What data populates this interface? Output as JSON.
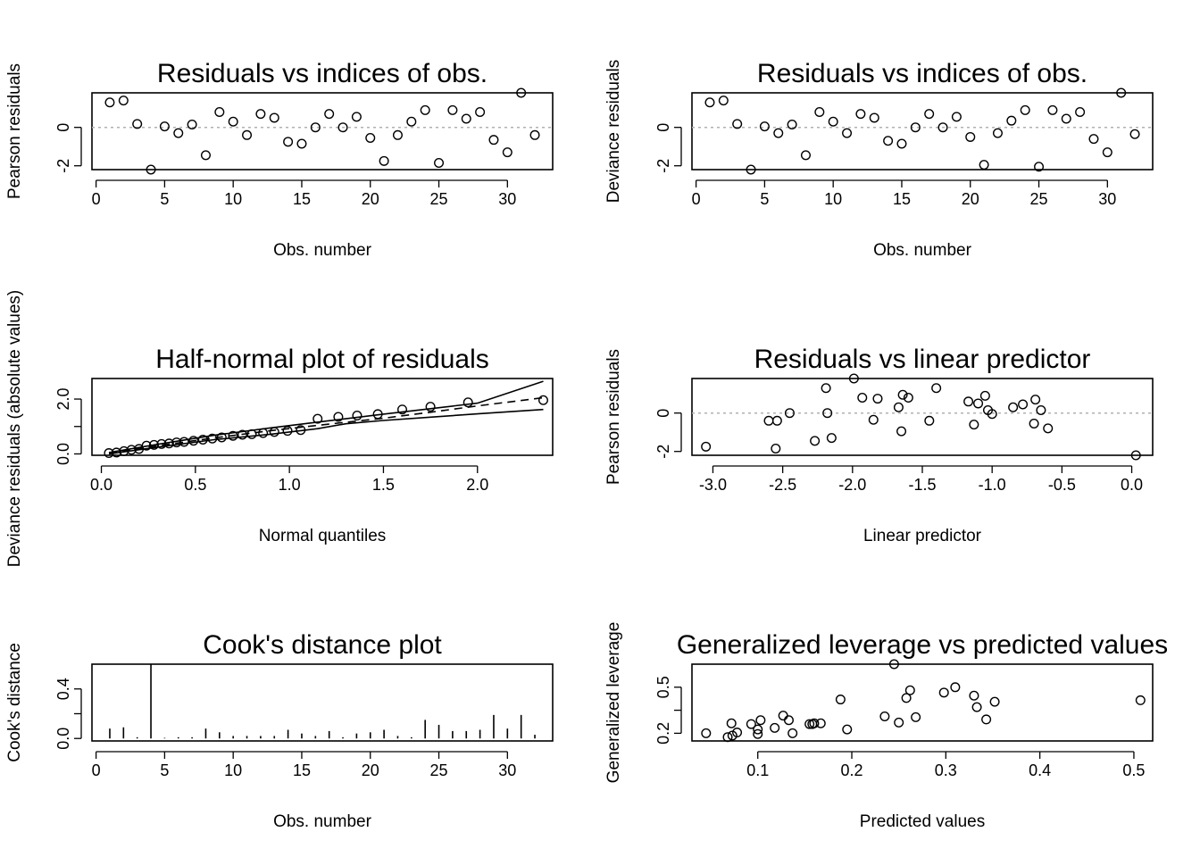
{
  "chart_data": [
    {
      "type": "scatter",
      "title": "Residuals vs indices of obs.",
      "xlabel": "Obs. number",
      "ylabel": "Pearson residuals",
      "xlim": [
        -0.3,
        33.3
      ],
      "ylim": [
        -2.2,
        1.8
      ],
      "xticks": [
        0,
        5,
        10,
        15,
        20,
        25,
        30
      ],
      "yticks": [
        -2,
        0
      ],
      "xtick_labels": [
        "0",
        "5",
        "10",
        "15",
        "20",
        "25",
        "30"
      ],
      "ytick_labels": [
        "-2",
        "0"
      ],
      "hline": 0,
      "x": [
        1,
        2,
        3,
        4,
        5,
        6,
        7,
        8,
        9,
        10,
        11,
        12,
        13,
        14,
        15,
        16,
        17,
        18,
        19,
        20,
        21,
        22,
        23,
        24,
        25,
        26,
        27,
        28,
        29,
        30,
        31,
        32
      ],
      "y": [
        1.3,
        1.4,
        0.18,
        -2.2,
        0.05,
        -0.3,
        0.15,
        -1.45,
        0.8,
        0.3,
        -0.4,
        0.7,
        0.5,
        -0.75,
        -0.85,
        0,
        0.7,
        0,
        0.55,
        -0.55,
        -1.75,
        -0.4,
        0.3,
        0.9,
        -1.85,
        0.9,
        0.45,
        0.8,
        -0.65,
        -1.3,
        1.8,
        -0.4
      ]
    },
    {
      "type": "scatter",
      "title": "Residuals vs indices of obs.",
      "xlabel": "Obs. number",
      "ylabel": "Deviance residuals",
      "xlim": [
        -0.3,
        33.3
      ],
      "ylim": [
        -2.2,
        1.8
      ],
      "xticks": [
        0,
        5,
        10,
        15,
        20,
        25,
        30
      ],
      "yticks": [
        -2,
        0
      ],
      "xtick_labels": [
        "0",
        "5",
        "10",
        "15",
        "20",
        "25",
        "30"
      ],
      "ytick_labels": [
        "-2",
        "0"
      ],
      "hline": 0,
      "x": [
        1,
        2,
        3,
        4,
        5,
        6,
        7,
        8,
        9,
        10,
        11,
        12,
        13,
        14,
        15,
        16,
        17,
        18,
        19,
        20,
        21,
        22,
        23,
        24,
        25,
        26,
        27,
        28,
        29,
        30,
        31,
        32
      ],
      "y": [
        1.3,
        1.4,
        0.18,
        -2.2,
        0.05,
        -0.3,
        0.15,
        -1.45,
        0.8,
        0.3,
        -0.3,
        0.7,
        0.5,
        -0.7,
        -0.85,
        0,
        0.7,
        0,
        0.55,
        -0.5,
        -1.95,
        -0.3,
        0.35,
        0.9,
        -2.05,
        0.9,
        0.45,
        0.8,
        -0.6,
        -1.3,
        1.8,
        -0.35
      ]
    },
    {
      "type": "line",
      "title": "Half-normal plot of residuals",
      "xlabel": "Normal quantiles",
      "ylabel": "Deviance residuals (absolute values)",
      "xlim": [
        -0.05,
        2.4
      ],
      "ylim": [
        -0.05,
        2.75
      ],
      "xticks": [
        0,
        0.5,
        1,
        1.5,
        2
      ],
      "yticks": [
        0,
        1,
        2
      ],
      "xtick_labels": [
        "0.0",
        "0.5",
        "1.0",
        "1.5",
        "2.0"
      ],
      "ytick_labels": [
        "0.0",
        "",
        "2.0"
      ],
      "points": {
        "x": [
          0.04,
          0.08,
          0.12,
          0.16,
          0.2,
          0.24,
          0.28,
          0.32,
          0.36,
          0.4,
          0.44,
          0.49,
          0.54,
          0.59,
          0.64,
          0.7,
          0.75,
          0.8,
          0.86,
          0.92,
          0.99,
          1.06,
          1.15,
          1.26,
          1.36,
          1.47,
          1.6,
          1.75,
          1.95,
          2.35
        ],
        "y": [
          0.03,
          0.05,
          0.1,
          0.15,
          0.18,
          0.3,
          0.33,
          0.36,
          0.38,
          0.42,
          0.44,
          0.48,
          0.52,
          0.56,
          0.6,
          0.66,
          0.7,
          0.72,
          0.76,
          0.8,
          0.84,
          0.87,
          1.28,
          1.35,
          1.4,
          1.45,
          1.62,
          1.72,
          1.88,
          1.96
        ]
      },
      "series": [
        {
          "x": [
            0.04,
            0.3,
            0.6,
            0.9,
            1.2,
            1.5,
            1.75,
            2.0,
            2.35
          ],
          "y": [
            0.05,
            0.35,
            0.68,
            0.95,
            1.2,
            1.45,
            1.65,
            1.85,
            2.65
          ]
        },
        {
          "x": [
            0.04,
            0.3,
            0.6,
            0.9,
            1.2,
            1.5,
            1.75,
            2.0,
            2.35
          ],
          "y": [
            0.02,
            0.3,
            0.58,
            0.85,
            1.08,
            1.3,
            1.52,
            1.75,
            2.05
          ]
        },
        {
          "x": [
            0.04,
            0.3,
            0.6,
            0.9,
            1.15,
            1.3,
            1.5,
            1.75,
            2.0,
            2.35
          ],
          "y": [
            0.0,
            0.25,
            0.52,
            0.72,
            0.92,
            1.1,
            1.22,
            1.34,
            1.46,
            1.62
          ]
        }
      ]
    },
    {
      "type": "scatter",
      "title": "Residuals vs linear predictor",
      "xlabel": "Linear predictor",
      "ylabel": "Pearson residuals",
      "xlim": [
        -3.15,
        0.15
      ],
      "ylim": [
        -2.2,
        1.8
      ],
      "xticks": [
        -3,
        -2.5,
        -2,
        -1.5,
        -1,
        -0.5,
        0
      ],
      "yticks": [
        -2,
        0
      ],
      "xtick_labels": [
        "-3.0",
        "-2.5",
        "-2.0",
        "-1.5",
        "-1.0",
        "-0.5",
        "0.0"
      ],
      "ytick_labels": [
        "-2",
        "0"
      ],
      "hline": 0,
      "x": [
        -3.05,
        -2.6,
        -2.55,
        -2.54,
        -2.45,
        -2.27,
        -2.18,
        -2.19,
        -2.15,
        -1.99,
        -1.93,
        -1.85,
        -1.82,
        -1.67,
        -1.65,
        -1.64,
        -1.6,
        -1.45,
        -1.4,
        -1.17,
        -1.13,
        -1.1,
        -1.05,
        -1.03,
        -1.0,
        -0.85,
        -0.78,
        -0.7,
        -0.69,
        -0.65,
        -0.6,
        0.03
      ],
      "y": [
        -1.75,
        -0.4,
        -1.85,
        -0.4,
        0,
        -1.45,
        0,
        1.3,
        -1.3,
        1.8,
        0.8,
        -0.35,
        0.75,
        0.3,
        -0.95,
        0.95,
        0.8,
        -0.4,
        1.3,
        0.6,
        -0.6,
        0.5,
        0.9,
        0.15,
        -0.05,
        0.3,
        0.45,
        -0.55,
        0.7,
        0.15,
        -0.8,
        -2.2
      ]
    },
    {
      "type": "bar",
      "title": "Cook's distance plot",
      "xlabel": "Obs. number",
      "ylabel": "Cook's distance",
      "xlim": [
        -0.3,
        33.3
      ],
      "ylim": [
        -0.02,
        0.6
      ],
      "xticks": [
        0,
        5,
        10,
        15,
        20,
        25,
        30
      ],
      "yticks": [
        0,
        0.2,
        0.4
      ],
      "xtick_labels": [
        "0",
        "5",
        "10",
        "15",
        "20",
        "25",
        "30"
      ],
      "ytick_labels": [
        "0.0",
        "",
        "0.4"
      ],
      "x": [
        1,
        2,
        3,
        4,
        5,
        6,
        7,
        8,
        9,
        10,
        11,
        12,
        13,
        14,
        15,
        16,
        17,
        18,
        19,
        20,
        21,
        22,
        23,
        24,
        25,
        26,
        27,
        28,
        29,
        30,
        31,
        32
      ],
      "values": [
        0.08,
        0.09,
        0.01,
        0.6,
        0.005,
        0.01,
        0.01,
        0.08,
        0.05,
        0.02,
        0.02,
        0.02,
        0.02,
        0.07,
        0.04,
        0.02,
        0.06,
        0.01,
        0.04,
        0.05,
        0.07,
        0.02,
        0.01,
        0.15,
        0.11,
        0.06,
        0.06,
        0.07,
        0.19,
        0.08,
        0.19,
        0.03
      ]
    },
    {
      "type": "scatter",
      "title": "Generalized leverage vs predicted values",
      "xlabel": "Predicted values",
      "ylabel": "Generalized leverage",
      "xlim": [
        0.03,
        0.52
      ],
      "ylim": [
        0.15,
        0.65
      ],
      "xticks": [
        0.1,
        0.2,
        0.3,
        0.4,
        0.5
      ],
      "yticks": [
        0.2,
        0.35,
        0.5
      ],
      "xtick_labels": [
        "0.1",
        "0.2",
        "0.3",
        "0.4",
        "0.5"
      ],
      "ytick_labels": [
        "0.2",
        "",
        "0.5"
      ],
      "x": [
        0.045,
        0.068,
        0.072,
        0.073,
        0.078,
        0.093,
        0.1,
        0.1,
        0.103,
        0.118,
        0.127,
        0.133,
        0.137,
        0.155,
        0.158,
        0.16,
        0.167,
        0.188,
        0.195,
        0.235,
        0.245,
        0.25,
        0.258,
        0.262,
        0.268,
        0.298,
        0.31,
        0.33,
        0.333,
        0.343,
        0.352,
        0.507
      ],
      "y": [
        0.2,
        0.175,
        0.265,
        0.185,
        0.205,
        0.26,
        0.225,
        0.195,
        0.285,
        0.235,
        0.315,
        0.285,
        0.2,
        0.26,
        0.26,
        0.265,
        0.265,
        0.42,
        0.225,
        0.31,
        0.65,
        0.27,
        0.43,
        0.48,
        0.305,
        0.465,
        0.5,
        0.445,
        0.37,
        0.29,
        0.405,
        0.415
      ]
    }
  ]
}
